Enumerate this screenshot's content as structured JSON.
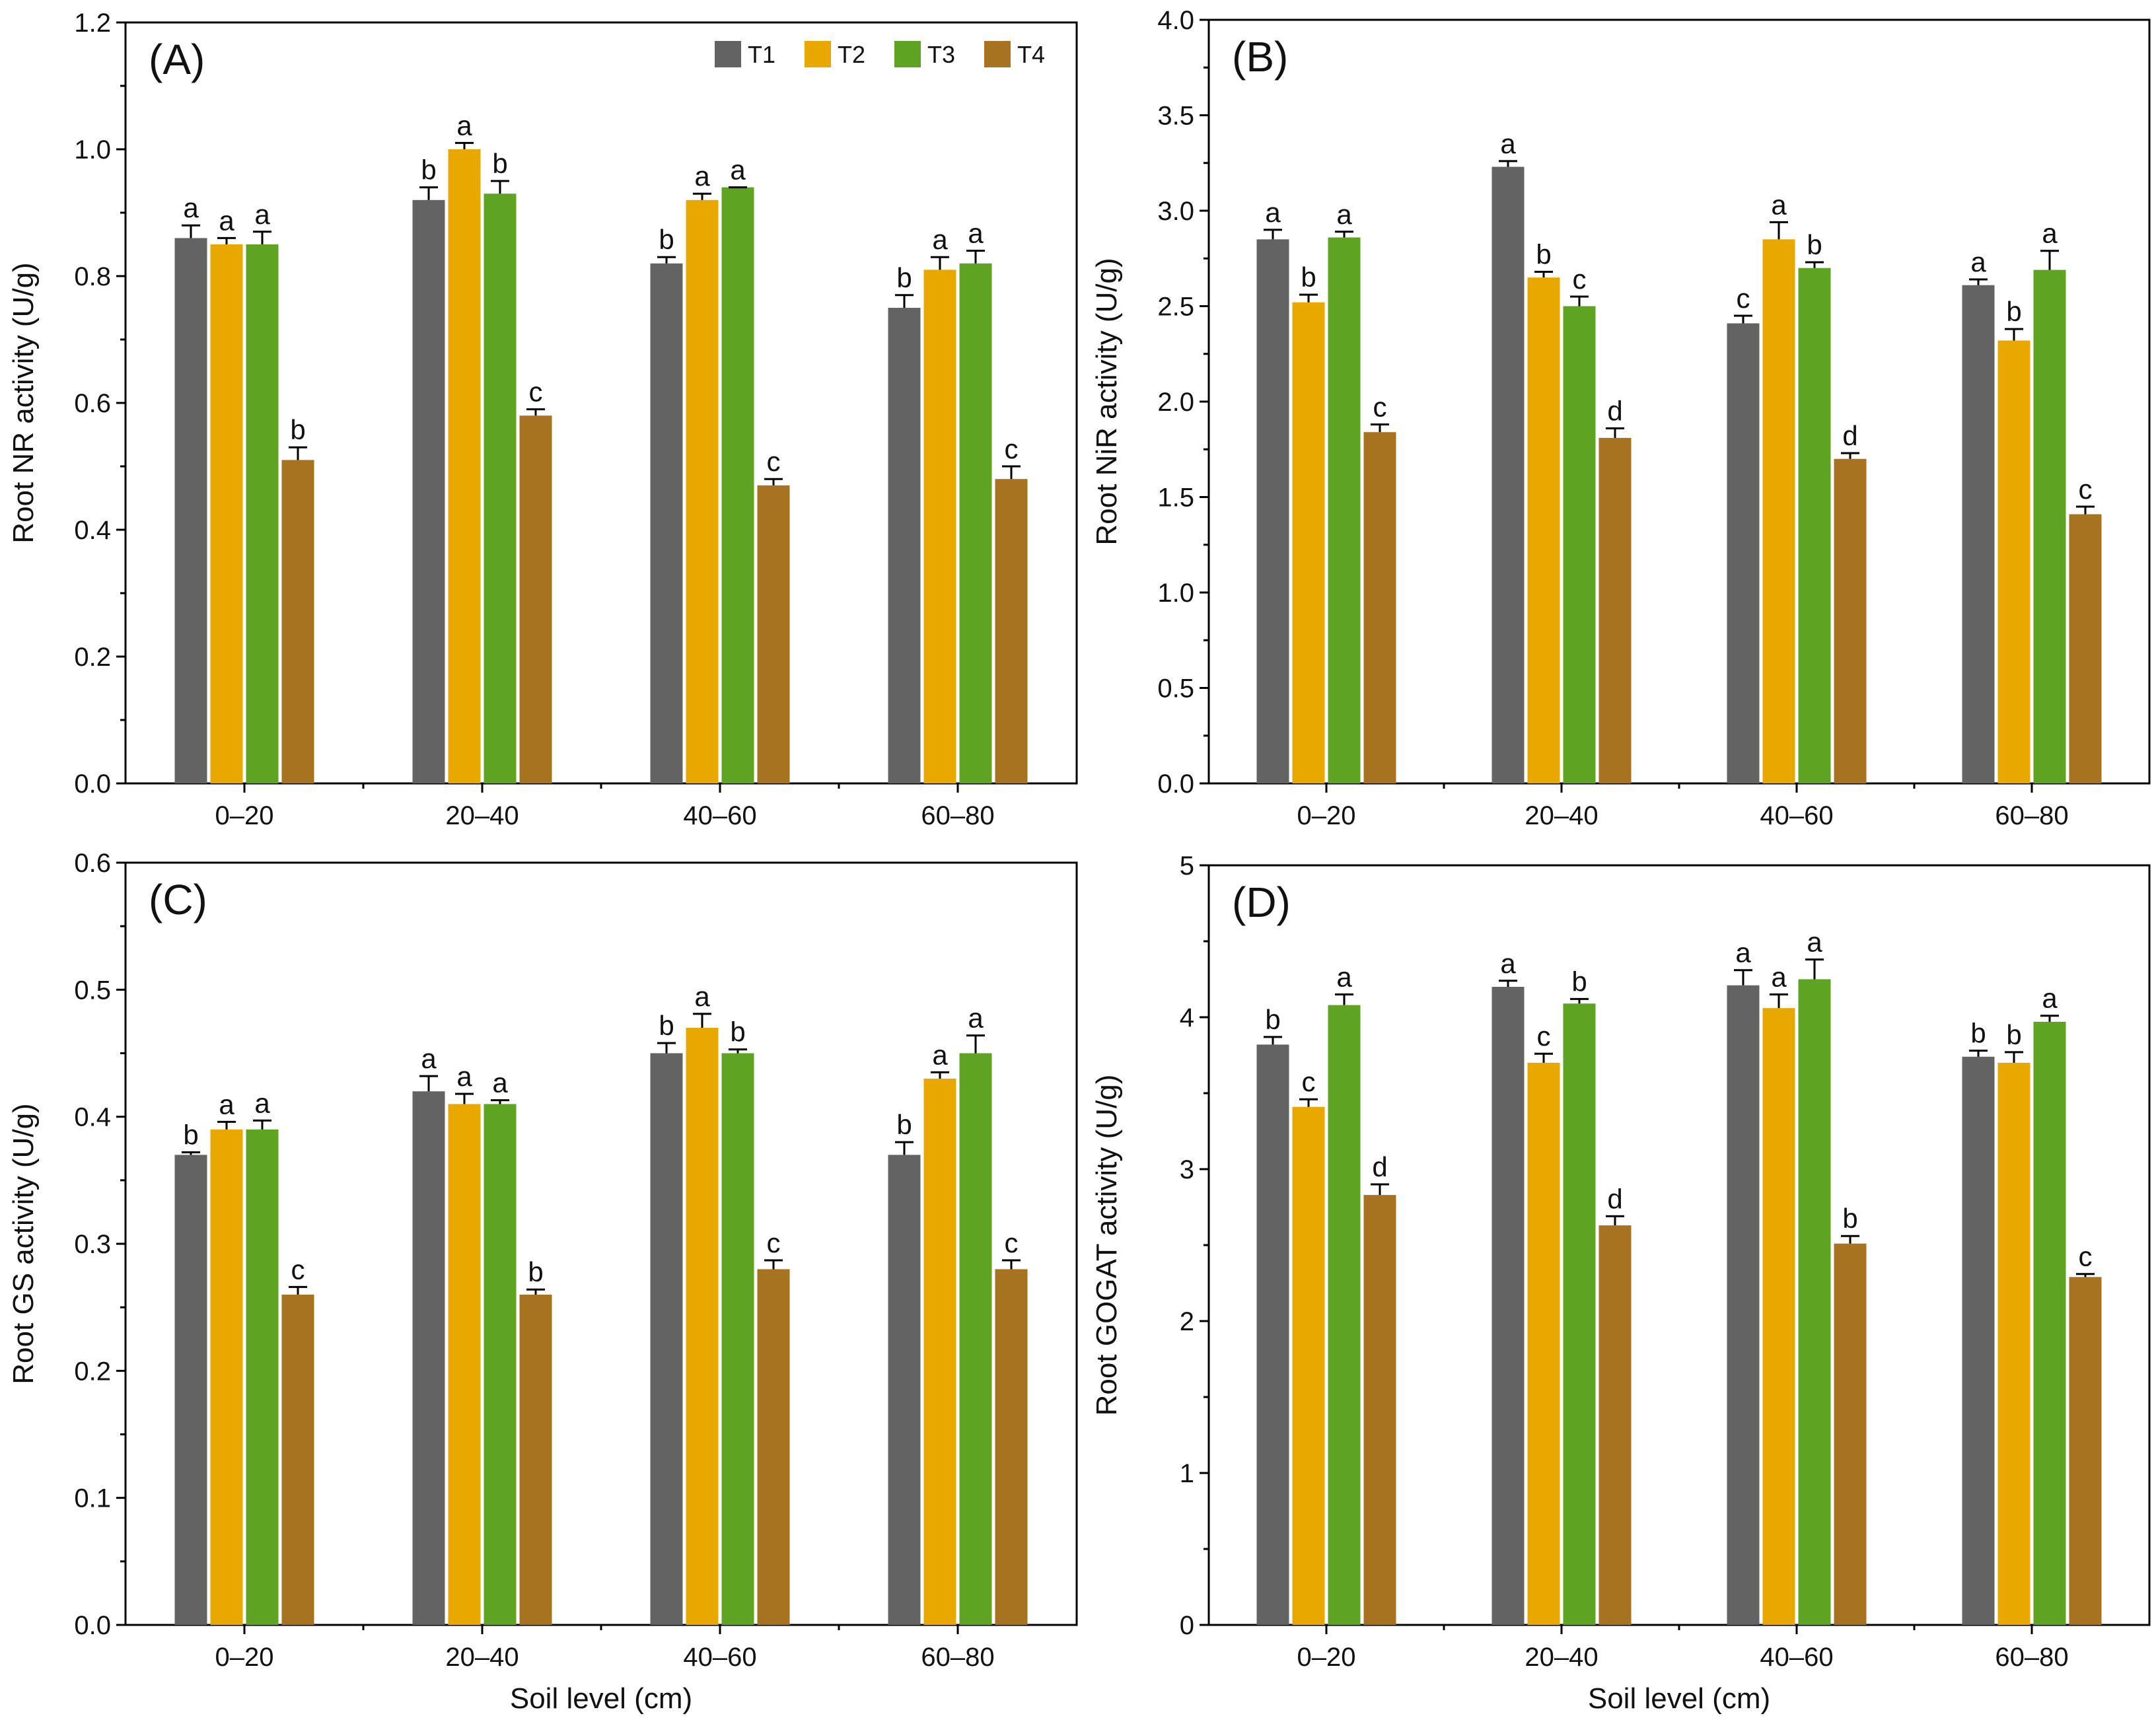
{
  "chart_data": [
    {
      "type": "bar",
      "panel_label": "(A)",
      "title": "",
      "xlabel": "",
      "ylabel": "Root NR activity (U/g)",
      "ylim": [
        0,
        1.2
      ],
      "yticks": [
        "0.0",
        "0.2",
        "0.4",
        "0.6",
        "0.8",
        "1.0",
        "1.2"
      ],
      "categories": [
        "0–20",
        "20–40",
        "40–60",
        "60–80"
      ],
      "legend": {
        "position": "top-right",
        "entries": [
          "T1",
          "T2",
          "T3",
          "T4"
        ]
      },
      "series": [
        {
          "name": "T1",
          "color": "#636363",
          "values": [
            0.86,
            0.92,
            0.82,
            0.75
          ],
          "errors": [
            0.02,
            0.02,
            0.01,
            0.02
          ],
          "letters": [
            "a",
            "b",
            "b",
            "b"
          ]
        },
        {
          "name": "T2",
          "color": "#e8a800",
          "values": [
            0.85,
            1.0,
            0.92,
            0.81
          ],
          "errors": [
            0.01,
            0.01,
            0.01,
            0.02
          ],
          "letters": [
            "a",
            "a",
            "a",
            "a"
          ]
        },
        {
          "name": "T3",
          "color": "#5ea422",
          "values": [
            0.85,
            0.93,
            0.94,
            0.82
          ],
          "errors": [
            0.02,
            0.02,
            0.0,
            0.02
          ],
          "letters": [
            "a",
            "b",
            "a",
            "a"
          ]
        },
        {
          "name": "T4",
          "color": "#a87320",
          "values": [
            0.51,
            0.58,
            0.47,
            0.48
          ],
          "errors": [
            0.02,
            0.01,
            0.01,
            0.02
          ],
          "letters": [
            "b",
            "c",
            "c",
            "c"
          ]
        }
      ]
    },
    {
      "type": "bar",
      "panel_label": "(B)",
      "title": "",
      "xlabel": "",
      "ylabel": "Root NiR activity (U/g)",
      "ylim": [
        0,
        4.0
      ],
      "yticks": [
        "0.0",
        "0.5",
        "1.0",
        "1.5",
        "2.0",
        "2.5",
        "3.0",
        "3.5",
        "4.0"
      ],
      "categories": [
        "0–20",
        "20–40",
        "40–60",
        "60–80"
      ],
      "series": [
        {
          "name": "T1",
          "color": "#636363",
          "values": [
            2.85,
            3.23,
            2.41,
            2.61
          ],
          "errors": [
            0.05,
            0.03,
            0.04,
            0.03
          ],
          "letters": [
            "a",
            "a",
            "c",
            "a"
          ]
        },
        {
          "name": "T2",
          "color": "#e8a800",
          "values": [
            2.52,
            2.65,
            2.85,
            2.32
          ],
          "errors": [
            0.04,
            0.03,
            0.09,
            0.06
          ],
          "letters": [
            "b",
            "b",
            "a",
            "b"
          ]
        },
        {
          "name": "T3",
          "color": "#5ea422",
          "values": [
            2.86,
            2.5,
            2.7,
            2.69
          ],
          "errors": [
            0.03,
            0.05,
            0.03,
            0.1
          ],
          "letters": [
            "a",
            "c",
            "b",
            "a"
          ]
        },
        {
          "name": "T4",
          "color": "#a87320",
          "values": [
            1.84,
            1.81,
            1.7,
            1.41
          ],
          "errors": [
            0.04,
            0.05,
            0.03,
            0.04
          ],
          "letters": [
            "c",
            "d",
            "d",
            "c"
          ]
        }
      ]
    },
    {
      "type": "bar",
      "panel_label": "(C)",
      "title": "",
      "xlabel": "Soil level (cm)",
      "ylabel": "Root GS activity (U/g)",
      "ylim": [
        0,
        0.6
      ],
      "yticks": [
        "0.0",
        "0.1",
        "0.2",
        "0.3",
        "0.4",
        "0.5",
        "0.6"
      ],
      "categories": [
        "0–20",
        "20–40",
        "40–60",
        "60–80"
      ],
      "series": [
        {
          "name": "T1",
          "color": "#636363",
          "values": [
            0.37,
            0.42,
            0.45,
            0.37
          ],
          "errors": [
            0.002,
            0.012,
            0.008,
            0.01
          ],
          "letters": [
            "b",
            "a",
            "b",
            "b"
          ]
        },
        {
          "name": "T2",
          "color": "#e8a800",
          "values": [
            0.39,
            0.41,
            0.47,
            0.43
          ],
          "errors": [
            0.006,
            0.008,
            0.011,
            0.005
          ],
          "letters": [
            "a",
            "a",
            "a",
            "a"
          ]
        },
        {
          "name": "T3",
          "color": "#5ea422",
          "values": [
            0.39,
            0.41,
            0.45,
            0.45
          ],
          "errors": [
            0.007,
            0.003,
            0.003,
            0.014
          ],
          "letters": [
            "a",
            "a",
            "b",
            "a"
          ]
        },
        {
          "name": "T4",
          "color": "#a87320",
          "values": [
            0.26,
            0.26,
            0.28,
            0.28
          ],
          "errors": [
            0.006,
            0.004,
            0.007,
            0.007
          ],
          "letters": [
            "c",
            "b",
            "c",
            "c"
          ]
        }
      ]
    },
    {
      "type": "bar",
      "panel_label": "(D)",
      "title": "",
      "xlabel": "Soil level (cm)",
      "ylabel": "Root GOGAT activity (U/g)",
      "ylim": [
        0,
        5
      ],
      "yticks": [
        "0",
        "1",
        "2",
        "3",
        "4",
        "5"
      ],
      "categories": [
        "0–20",
        "20–40",
        "40–60",
        "60–80"
      ],
      "series": [
        {
          "name": "T1",
          "color": "#636363",
          "values": [
            3.82,
            4.2,
            4.21,
            3.74
          ],
          "errors": [
            0.05,
            0.04,
            0.1,
            0.04
          ],
          "letters": [
            "b",
            "a",
            "a",
            "b"
          ]
        },
        {
          "name": "T2",
          "color": "#e8a800",
          "values": [
            3.41,
            3.7,
            4.06,
            3.7
          ],
          "errors": [
            0.05,
            0.06,
            0.09,
            0.07
          ],
          "letters": [
            "c",
            "c",
            "a",
            "b"
          ]
        },
        {
          "name": "T3",
          "color": "#5ea422",
          "values": [
            4.08,
            4.09,
            4.25,
            3.97
          ],
          "errors": [
            0.07,
            0.03,
            0.13,
            0.04
          ],
          "letters": [
            "a",
            "b",
            "a",
            "a"
          ]
        },
        {
          "name": "T4",
          "color": "#a87320",
          "values": [
            2.83,
            2.63,
            2.51,
            2.29
          ],
          "errors": [
            0.07,
            0.06,
            0.05,
            0.02
          ],
          "letters": [
            "d",
            "d",
            "b",
            "c"
          ]
        }
      ]
    }
  ]
}
